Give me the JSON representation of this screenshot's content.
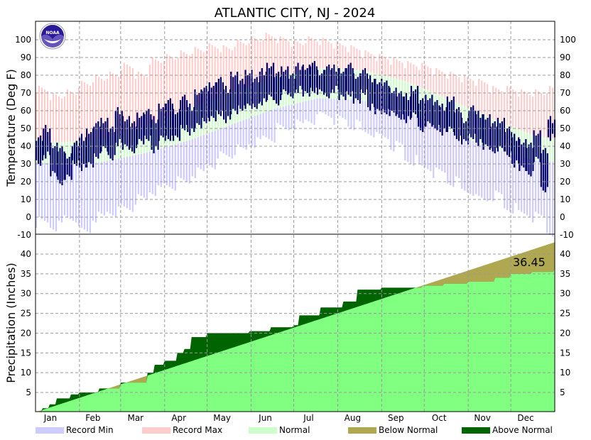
{
  "chart_data": {
    "type": "bar",
    "title": "ATLANTIC CITY, NJ - 2024",
    "logo_text": "NOAA",
    "months": [
      "Jan",
      "Feb",
      "Mar",
      "Apr",
      "May",
      "Jun",
      "Jul",
      "Aug",
      "Sep",
      "Oct",
      "Nov",
      "Dec"
    ],
    "month_start_days": [
      0,
      31,
      60,
      91,
      121,
      152,
      182,
      213,
      244,
      274,
      305,
      335,
      366
    ],
    "temperature": {
      "ylabel": "Temperature (Deg F)",
      "ylim": [
        -10,
        110
      ],
      "ticks": [
        -10,
        0,
        10,
        20,
        30,
        40,
        50,
        60,
        70,
        80,
        90,
        100
      ],
      "record_max_10day": [
        72,
        68,
        70,
        75,
        78,
        80,
        85,
        80,
        88,
        90,
        92,
        94,
        96,
        95,
        98,
        100,
        102,
        100,
        98,
        100,
        99,
        97,
        95,
        92,
        90,
        88,
        86,
        85,
        82,
        80,
        78,
        76,
        72,
        72,
        70,
        70,
        72
      ],
      "record_min_10day": [
        -3,
        -5,
        0,
        -8,
        0,
        3,
        5,
        10,
        15,
        18,
        20,
        25,
        30,
        35,
        38,
        42,
        45,
        50,
        52,
        55,
        58,
        55,
        52,
        48,
        45,
        40,
        32,
        28,
        25,
        20,
        15,
        10,
        12,
        5,
        2,
        0,
        -8
      ],
      "normal_high_monthly": [
        42,
        44,
        51,
        61,
        70,
        79,
        84,
        83,
        77,
        67,
        56,
        46
      ],
      "normal_low_monthly": [
        30,
        31,
        36,
        43,
        52,
        61,
        67,
        66,
        60,
        49,
        39,
        32
      ],
      "observed_high_5day": [
        45,
        50,
        40,
        38,
        35,
        42,
        45,
        48,
        52,
        55,
        50,
        60,
        55,
        52,
        58,
        60,
        55,
        62,
        65,
        60,
        68,
        62,
        70,
        72,
        75,
        78,
        72,
        80,
        76,
        82,
        78,
        82,
        85,
        80,
        84,
        80,
        85,
        84,
        86,
        82,
        85,
        84,
        82,
        85,
        80,
        83,
        78,
        76,
        75,
        72,
        70,
        68,
        72,
        65,
        68,
        65,
        62,
        66,
        60,
        55,
        62,
        58,
        56,
        52,
        55,
        50,
        45,
        42,
        40,
        48,
        38,
        55
      ],
      "observed_low_5day": [
        30,
        35,
        25,
        20,
        22,
        30,
        28,
        30,
        35,
        38,
        33,
        42,
        40,
        38,
        42,
        44,
        38,
        45,
        45,
        44,
        50,
        48,
        52,
        55,
        55,
        58,
        55,
        60,
        62,
        62,
        62,
        65,
        68,
        65,
        70,
        68,
        72,
        70,
        72,
        70,
        68,
        72,
        68,
        70,
        65,
        70,
        62,
        60,
        60,
        58,
        56,
        55,
        58,
        50,
        52,
        50,
        48,
        50,
        45,
        42,
        45,
        42,
        40,
        38,
        38,
        35,
        30,
        28,
        25,
        32,
        15,
        45
      ]
    },
    "precipitation": {
      "ylabel": "Precipitation (Inches)",
      "ylim": [
        0,
        45
      ],
      "ticks": [
        5,
        10,
        15,
        20,
        25,
        30,
        35,
        40
      ],
      "total_label": "36.45",
      "normal_annual_total": 43.0,
      "actual_cumulative": [
        [
          0,
          0.2
        ],
        [
          5,
          1
        ],
        [
          10,
          2
        ],
        [
          15,
          3.5
        ],
        [
          25,
          4.5
        ],
        [
          31,
          5
        ],
        [
          45,
          6
        ],
        [
          60,
          7.5
        ],
        [
          79,
          10
        ],
        [
          84,
          12
        ],
        [
          91,
          13
        ],
        [
          100,
          15
        ],
        [
          105,
          16
        ],
        [
          110,
          19
        ],
        [
          121,
          20
        ],
        [
          151,
          20.5
        ],
        [
          166,
          21.5
        ],
        [
          182,
          22
        ],
        [
          186,
          24.5
        ],
        [
          201,
          26.5
        ],
        [
          217,
          28
        ],
        [
          227,
          31
        ],
        [
          244,
          31.5
        ],
        [
          273,
          32
        ],
        [
          288,
          32.5
        ],
        [
          305,
          33
        ],
        [
          324,
          34
        ],
        [
          335,
          35
        ],
        [
          350,
          35.5
        ],
        [
          366,
          36.45
        ]
      ]
    },
    "legend": [
      {
        "label": "Record Min",
        "color": "#ccccff"
      },
      {
        "label": "Record Max",
        "color": "#ffcccc"
      },
      {
        "label": "Normal",
        "color": "#ccffcc"
      },
      {
        "label": "Below Normal",
        "color": "#b0a850"
      },
      {
        "label": "Above Normal",
        "color": "#006400"
      }
    ],
    "colors": {
      "observed": "#000066",
      "precip_normal": "#80ff80"
    }
  }
}
